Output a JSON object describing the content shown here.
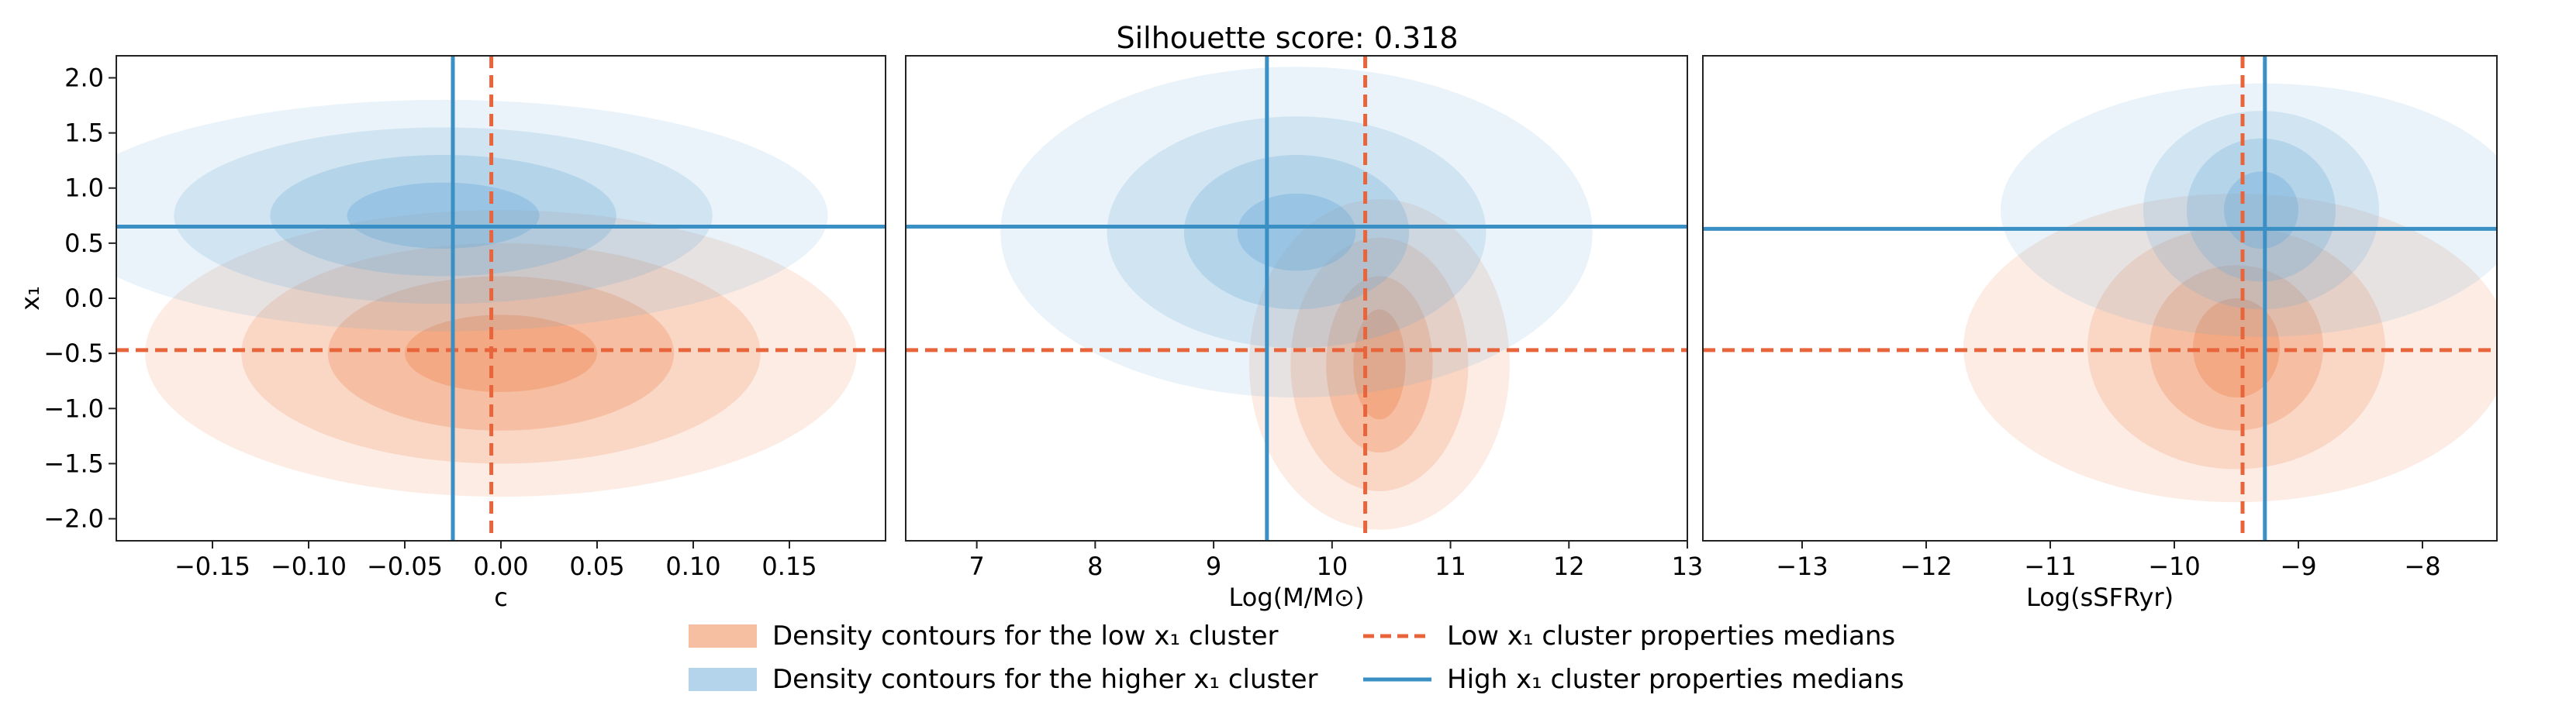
{
  "title": "Silhouette score: 0.318",
  "colors": {
    "low": "#f08a55",
    "low_line": "#e8643a",
    "high": "#6aaad8",
    "high_line": "#3a8fc4"
  },
  "legend": {
    "low_patch": "Density contours for the low x₁ cluster",
    "high_patch": "Density contours for the higher x₁ cluster",
    "low_line": "Low x₁ cluster properties medians",
    "high_line": "High x₁ cluster properties medians"
  },
  "chart_data": [
    {
      "type": "contour",
      "xlabel": "c",
      "ylabel": "x₁",
      "xlim": [
        -0.2,
        0.2
      ],
      "ylim": [
        -2.2,
        2.2
      ],
      "xticks": [
        -0.15,
        -0.1,
        -0.05,
        0.0,
        0.05,
        0.1,
        0.15
      ],
      "xtick_labels": [
        "−0.15",
        "−0.10",
        "−0.05",
        "0.00",
        "0.05",
        "0.10",
        "0.15"
      ],
      "yticks": [
        2.0,
        1.5,
        1.0,
        0.5,
        0.0,
        -0.5,
        -1.0,
        -1.5,
        -2.0
      ],
      "ytick_labels": [
        "2.0",
        "1.5",
        "1.0",
        "0.5",
        "0.0",
        "−0.5",
        "−1.0",
        "−1.5",
        "−2.0"
      ],
      "low_median": {
        "x": -0.005,
        "y": -0.47
      },
      "high_median": {
        "x": -0.025,
        "y": 0.65
      },
      "low_contours": {
        "cx": 0.0,
        "cy": -0.5,
        "rx": [
          0.185,
          0.135,
          0.09,
          0.05
        ],
        "ry": [
          1.3,
          1.0,
          0.7,
          0.35
        ]
      },
      "high_contours": {
        "cx": -0.03,
        "cy": 0.75,
        "rx": [
          0.2,
          0.14,
          0.09,
          0.05
        ],
        "ry": [
          1.05,
          0.8,
          0.55,
          0.3
        ]
      }
    },
    {
      "type": "contour",
      "xlabel": "Log(M/M⊙)",
      "ylabel": "",
      "xlim": [
        6.4,
        13.0
      ],
      "ylim": [
        -2.2,
        2.2
      ],
      "xticks": [
        7,
        8,
        9,
        10,
        11,
        12,
        13
      ],
      "xtick_labels": [
        "7",
        "8",
        "9",
        "10",
        "11",
        "12",
        "13"
      ],
      "yticks": [],
      "ytick_labels": [],
      "low_median": {
        "x": 10.28,
        "y": -0.47
      },
      "high_median": {
        "x": 9.45,
        "y": 0.65
      },
      "low_contours": {
        "cx": 10.4,
        "cy": -0.6,
        "rx": [
          1.1,
          0.75,
          0.45,
          0.22
        ],
        "ry": [
          1.5,
          1.15,
          0.8,
          0.5
        ]
      },
      "high_contours": {
        "cx": 9.7,
        "cy": 0.6,
        "rx": [
          2.5,
          1.6,
          0.95,
          0.5
        ],
        "ry": [
          1.5,
          1.05,
          0.7,
          0.35
        ]
      }
    },
    {
      "type": "contour",
      "xlabel": "Log(sSFRyr)",
      "ylabel": "",
      "xlim": [
        -13.8,
        -7.4
      ],
      "ylim": [
        -2.2,
        2.2
      ],
      "xticks": [
        -13,
        -12,
        -11,
        -10,
        -9,
        -8
      ],
      "xtick_labels": [
        "−13",
        "−12",
        "−11",
        "−10",
        "−9",
        "−8"
      ],
      "yticks": [],
      "ytick_labels": [],
      "low_median": {
        "x": -9.45,
        "y": -0.47
      },
      "high_median": {
        "x": -9.27,
        "y": 0.63
      },
      "low_contours": {
        "cx": -9.5,
        "cy": -0.45,
        "rx": [
          2.2,
          1.2,
          0.7,
          0.35
        ],
        "ry": [
          1.4,
          1.1,
          0.75,
          0.45
        ]
      },
      "high_contours": {
        "cx": -9.3,
        "cy": 0.8,
        "rx": [
          2.1,
          0.95,
          0.6,
          0.3
        ],
        "ry": [
          1.15,
          0.9,
          0.65,
          0.35
        ]
      }
    }
  ]
}
